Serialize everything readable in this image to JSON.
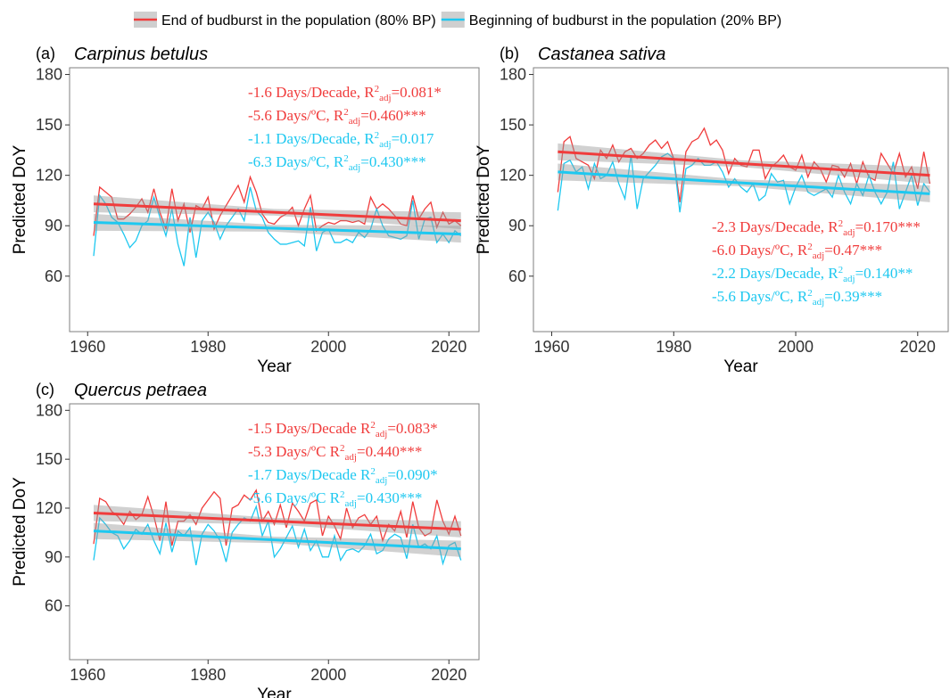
{
  "chart_data": [
    {
      "type": "line",
      "label": "(a)",
      "title": "Carpinus betulus",
      "xlabel": "Year",
      "ylabel": "Predicted DoY",
      "xlim": [
        1957,
        2025
      ],
      "ylim": [
        27,
        184
      ],
      "xticks": [
        1960,
        1980,
        2000,
        2020
      ],
      "yticks": [
        60,
        90,
        120,
        150,
        180
      ],
      "x": [
        1961,
        1962,
        1963,
        1964,
        1965,
        1966,
        1967,
        1968,
        1969,
        1970,
        1971,
        1972,
        1973,
        1974,
        1975,
        1976,
        1977,
        1978,
        1979,
        1980,
        1981,
        1982,
        1983,
        1984,
        1985,
        1986,
        1987,
        1988,
        1989,
        1990,
        1991,
        1992,
        1993,
        1994,
        1995,
        1996,
        1997,
        1998,
        1999,
        2000,
        2001,
        2002,
        2003,
        2004,
        2005,
        2006,
        2007,
        2008,
        2009,
        2010,
        2011,
        2012,
        2013,
        2014,
        2015,
        2016,
        2017,
        2018,
        2019,
        2020,
        2021,
        2022
      ],
      "series": [
        {
          "name": "End of budburst in the population (80% BP)",
          "color": "#f03c3c",
          "values": [
            84,
            113,
            110,
            107,
            94,
            94,
            97,
            101,
            106,
            98,
            112,
            98,
            88,
            112,
            93,
            103,
            86,
            102,
            100,
            107,
            88,
            96,
            102,
            108,
            114,
            104,
            119,
            110,
            97,
            92,
            91,
            95,
            97,
            101,
            90,
            100,
            108,
            87,
            90,
            92,
            91,
            93,
            93,
            92,
            93,
            91,
            107,
            100,
            103,
            100,
            96,
            91,
            90,
            108,
            94,
            100,
            104,
            89,
            98,
            91,
            93,
            90
          ],
          "fit": {
            "x": [
              1961,
              1991,
              2022
            ],
            "y": [
              103,
              98,
              93
            ],
            "lower": [
              98,
              96,
              88
            ],
            "upper": [
              108,
              100,
              98
            ]
          }
        },
        {
          "name": "Beginning of budburst in the population (20% BP)",
          "color": "#1ec8f0",
          "values": [
            72,
            108,
            103,
            95,
            92,
            85,
            77,
            81,
            90,
            93,
            107,
            95,
            84,
            100,
            79,
            66,
            95,
            71,
            93,
            98,
            92,
            82,
            90,
            95,
            100,
            93,
            113,
            99,
            95,
            86,
            82,
            79,
            79,
            80,
            81,
            78,
            101,
            75,
            86,
            88,
            80,
            80,
            82,
            80,
            86,
            83,
            88,
            100,
            90,
            84,
            83,
            82,
            84,
            105,
            82,
            94,
            95,
            80,
            85,
            80,
            87,
            84
          ],
          "fit": {
            "x": [
              1961,
              1991,
              2022
            ],
            "y": [
              92,
              88.5,
              85
            ],
            "lower": [
              87,
              86.5,
              80
            ],
            "upper": [
              97,
              90.5,
              90
            ]
          }
        }
      ],
      "annotation_corner": "top-right",
      "annotations": [
        {
          "text": "-1.6 Days/Decade, R",
          "sup": "2",
          "sub": "adj",
          "stat": "=0.081*",
          "color": "#f03c3c"
        },
        {
          "text": "-5.6 Days/ºC, R",
          "sup": "2",
          "sub": "adj",
          "stat": "=0.460***",
          "color": "#f03c3c"
        },
        {
          "text": "-1.1 Days/Decade, R",
          "sup": "2",
          "sub": "adj",
          "stat": "=0.017",
          "color": "#1ec8f0"
        },
        {
          "text": "-6.3 Days/ºC, R",
          "sup": "2",
          "sub": "adj",
          "stat": "=0.430***",
          "color": "#1ec8f0"
        }
      ]
    },
    {
      "type": "line",
      "label": "(b)",
      "title": "Castanea sativa",
      "xlabel": "Year",
      "ylabel": "Predicted DoY",
      "xlim": [
        1957,
        2025
      ],
      "ylim": [
        27,
        184
      ],
      "xticks": [
        1960,
        1980,
        2000,
        2020
      ],
      "yticks": [
        60,
        90,
        120,
        150,
        180
      ],
      "x": [
        1961,
        1962,
        1963,
        1964,
        1965,
        1966,
        1967,
        1968,
        1969,
        1970,
        1971,
        1972,
        1973,
        1974,
        1975,
        1976,
        1977,
        1978,
        1979,
        1980,
        1981,
        1982,
        1983,
        1984,
        1985,
        1986,
        1987,
        1988,
        1989,
        1990,
        1991,
        1992,
        1993,
        1994,
        1995,
        1996,
        1997,
        1998,
        1999,
        2000,
        2001,
        2002,
        2003,
        2004,
        2005,
        2006,
        2007,
        2008,
        2009,
        2010,
        2011,
        2012,
        2013,
        2014,
        2015,
        2016,
        2017,
        2018,
        2019,
        2020,
        2021,
        2022
      ],
      "series": [
        {
          "name": "End of budburst in the population (80% BP)",
          "color": "#f03c3c",
          "values": [
            110,
            140,
            143,
            130,
            128,
            126,
            118,
            135,
            130,
            138,
            128,
            134,
            136,
            130,
            133,
            138,
            141,
            136,
            140,
            130,
            104,
            134,
            140,
            142,
            148,
            138,
            141,
            135,
            121,
            130,
            126,
            125,
            135,
            135,
            118,
            125,
            128,
            132,
            125,
            123,
            132,
            119,
            128,
            124,
            116,
            126,
            125,
            119,
            127,
            115,
            128,
            119,
            117,
            133,
            127,
            121,
            133,
            119,
            125,
            112,
            134,
            115
          ],
          "fit": {
            "x": [
              1961,
              1991,
              2022
            ],
            "y": [
              134,
              127,
              120
            ],
            "lower": [
              129,
              125,
              115
            ],
            "upper": [
              139,
              129,
              125
            ]
          }
        },
        {
          "name": "Beginning of budburst in the population (20% BP)",
          "color": "#1ec8f0",
          "values": [
            99,
            127,
            129,
            122,
            125,
            112,
            127,
            118,
            120,
            128,
            115,
            106,
            132,
            100,
            118,
            122,
            126,
            131,
            133,
            130,
            98,
            124,
            126,
            130,
            126,
            126,
            128,
            122,
            113,
            118,
            113,
            110,
            115,
            105,
            108,
            121,
            116,
            117,
            103,
            113,
            120,
            110,
            108,
            110,
            112,
            107,
            120,
            110,
            103,
            115,
            108,
            120,
            110,
            103,
            110,
            128,
            100,
            110,
            120,
            102,
            115,
            110
          ],
          "fit": {
            "x": [
              1961,
              1991,
              2022
            ],
            "y": [
              122,
              115.5,
              109
            ],
            "lower": [
              117,
              113.5,
              104
            ],
            "upper": [
              127,
              117.5,
              114
            ]
          }
        }
      ],
      "annotation_corner": "bottom-right",
      "annotations": [
        {
          "text": "-2.3 Days/Decade, R",
          "sup": "2",
          "sub": "adj",
          "stat": "=0.170***",
          "color": "#f03c3c"
        },
        {
          "text": "-6.0 Days/ºC, R",
          "sup": "2",
          "sub": "adj",
          "stat": "=0.47***",
          "color": "#f03c3c"
        },
        {
          "text": "-2.2 Days/Decade, R",
          "sup": "2",
          "sub": "adj",
          "stat": "=0.140**",
          "color": "#1ec8f0"
        },
        {
          "text": "-5.6 Days/ºC, R",
          "sup": "2",
          "sub": "adj",
          "stat": "=0.39***",
          "color": "#1ec8f0"
        }
      ]
    },
    {
      "type": "line",
      "label": "(c)",
      "title": "Quercus petraea",
      "xlabel": "Year",
      "ylabel": "Predicted DoY",
      "xlim": [
        1957,
        2025
      ],
      "ylim": [
        27,
        184
      ],
      "xticks": [
        1960,
        1980,
        2000,
        2020
      ],
      "yticks": [
        60,
        90,
        120,
        150,
        180
      ],
      "x": [
        1961,
        1962,
        1963,
        1964,
        1965,
        1966,
        1967,
        1968,
        1969,
        1970,
        1971,
        1972,
        1973,
        1974,
        1975,
        1976,
        1977,
        1978,
        1979,
        1980,
        1981,
        1982,
        1983,
        1984,
        1985,
        1986,
        1987,
        1988,
        1989,
        1990,
        1991,
        1992,
        1993,
        1994,
        1995,
        1996,
        1997,
        1998,
        1999,
        2000,
        2001,
        2002,
        2003,
        2004,
        2005,
        2006,
        2007,
        2008,
        2009,
        2010,
        2011,
        2012,
        2013,
        2014,
        2015,
        2016,
        2017,
        2018,
        2019,
        2020,
        2021,
        2022
      ],
      "series": [
        {
          "name": "End of budburst in the population (80% BP)",
          "color": "#f03c3c",
          "values": [
            98,
            126,
            124,
            118,
            115,
            110,
            118,
            113,
            116,
            127,
            115,
            100,
            124,
            97,
            112,
            112,
            116,
            110,
            120,
            125,
            130,
            126,
            97,
            120,
            122,
            128,
            125,
            131,
            112,
            118,
            110,
            122,
            108,
            123,
            118,
            112,
            123,
            125,
            103,
            115,
            109,
            101,
            120,
            108,
            114,
            116,
            110,
            115,
            100,
            110,
            106,
            118,
            102,
            124,
            108,
            103,
            105,
            125,
            112,
            104,
            115,
            103
          ],
          "fit": {
            "x": [
              1961,
              1991,
              2022
            ],
            "y": [
              117,
              112,
              107
            ],
            "lower": [
              112,
              110,
              102
            ],
            "upper": [
              122,
              114,
              112
            ]
          }
        },
        {
          "name": "Beginning of budburst in the population (20% BP)",
          "color": "#1ec8f0",
          "values": [
            88,
            114,
            110,
            105,
            103,
            95,
            100,
            107,
            104,
            110,
            100,
            92,
            111,
            93,
            106,
            103,
            108,
            85,
            104,
            110,
            106,
            100,
            87,
            105,
            110,
            114,
            112,
            121,
            103,
            112,
            90,
            95,
            102,
            109,
            96,
            107,
            94,
            100,
            90,
            90,
            103,
            88,
            94,
            95,
            93,
            97,
            104,
            92,
            94,
            101,
            104,
            102,
            89,
            110,
            96,
            98,
            95,
            103,
            86,
            97,
            99,
            88
          ],
          "fit": {
            "x": [
              1961,
              1991,
              2022
            ],
            "y": [
              106,
              100.5,
              95
            ],
            "lower": [
              101,
              98.5,
              90
            ],
            "upper": [
              111,
              102.5,
              100
            ]
          }
        }
      ],
      "annotation_corner": "top-right",
      "annotations": [
        {
          "text": "-1.5 Days/Decade R",
          "sup": "2",
          "sub": "adj",
          "stat": "=0.083*",
          "color": "#f03c3c"
        },
        {
          "text": "-5.3 Days/ºC R",
          "sup": "2",
          "sub": "adj",
          "stat": "=0.440***",
          "color": "#f03c3c"
        },
        {
          "text": "-1.7 Days/Decade R",
          "sup": "2",
          "sub": "adj",
          "stat": "=0.090*",
          "color": "#1ec8f0"
        },
        {
          "text": "-5.6 Days/ºC R",
          "sup": "2",
          "sub": "adj",
          "stat": "=0.430***",
          "color": "#1ec8f0"
        }
      ]
    }
  ]
}
